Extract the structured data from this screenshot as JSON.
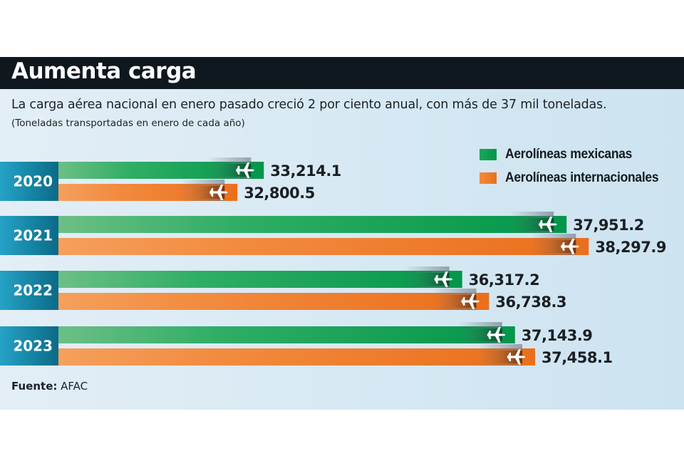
{
  "header": {
    "title": "Aumenta carga"
  },
  "subtitle": "La carga aérea nacional en enero pasado creció 2 por ciento anual, con más de 37 mil toneladas.",
  "note": "(Toneladas transportadas en enero de cada año)",
  "source": {
    "label": "Fuente:",
    "value": "AFAC"
  },
  "colors": {
    "header_bg": "#0e181e",
    "green": "#03964a",
    "green_light": "#6cbf86",
    "orange": "#ea6f1b",
    "orange_light": "#f5a05c",
    "year_box": "#0f7f9d"
  },
  "chart_data": {
    "type": "bar",
    "orientation": "horizontal",
    "title": "Aumenta carga",
    "subtitle": "La carga aérea nacional en enero pasado creció 2 por ciento anual, con más de 37 mil toneladas.",
    "ylabel": "(Toneladas transportadas en enero de cada año)",
    "categories": [
      "2020",
      "2021",
      "2022",
      "2023"
    ],
    "value_baseline": 30000,
    "series": [
      {
        "name": "Aerolíneas mexicanas",
        "color": "#03964a",
        "values": [
          33214.1,
          37951.2,
          36317.2,
          37143.9
        ],
        "labels": [
          "33,214.1",
          "37,951.2",
          "36,317.2",
          "37,143.9"
        ]
      },
      {
        "name": "Aerolíneas internacionales",
        "color": "#ea6f1b",
        "values": [
          32800.5,
          38297.9,
          36738.3,
          37458.1
        ],
        "labels": [
          "32,800.5",
          "38,297.9",
          "36,738.3",
          "37,458.1"
        ]
      }
    ],
    "legend": "top-right",
    "grid": false
  }
}
